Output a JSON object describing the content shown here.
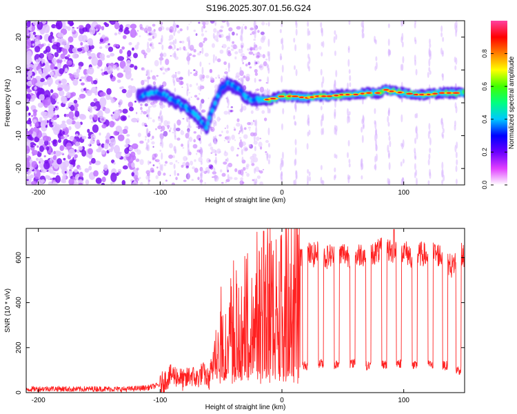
{
  "chart_data": [
    {
      "type": "heatmap",
      "title": "S196.2025.307.01.56.G24",
      "xlabel": "Height of straight line (km)",
      "ylabel": "Frequency (Hz)",
      "xlim": [
        -210,
        150
      ],
      "ylim": [
        -25,
        25
      ],
      "xticks": [
        -200,
        -100,
        0,
        100
      ],
      "yticks": [
        -20,
        -10,
        0,
        10,
        20
      ],
      "colorbar": {
        "label": "Normalized spectral amplitude",
        "range": [
          0,
          1
        ],
        "ticks": [
          "0.0",
          "0.2",
          "0.4",
          "0.6",
          "0.8"
        ],
        "colors": [
          "#ffffff",
          "#e040ff",
          "#6a00ff",
          "#0000ff",
          "#00c8ff",
          "#00ff80",
          "#40ff00",
          "#ffff00",
          "#ff8000",
          "#ff0000",
          "#ff40a0"
        ]
      },
      "ridge": {
        "x": [
          -117,
          -110,
          -100,
          -90,
          -80,
          -70,
          -65,
          -62,
          -58,
          -55,
          -50,
          -45,
          -40,
          -35,
          -30,
          -25,
          -20,
          -15,
          -10,
          -5,
          0,
          10,
          20,
          30,
          40,
          50,
          60,
          70,
          80,
          85,
          90,
          100,
          110,
          120,
          130,
          140,
          150
        ],
        "y": [
          2,
          3,
          3,
          1,
          -1,
          -4,
          -6,
          -8,
          -3,
          0,
          4,
          6,
          5,
          4,
          2,
          1,
          1,
          1,
          1,
          1.5,
          2,
          2,
          1.5,
          2,
          2,
          2.5,
          2.5,
          3,
          3,
          4,
          3.5,
          3,
          2.5,
          2.5,
          3,
          3,
          3
        ]
      }
    },
    {
      "type": "line",
      "xlabel": "Height of straight line (km)",
      "ylabel": "SNR (10 * v/v)",
      "xlim": [
        -210,
        150
      ],
      "ylim": [
        0,
        730
      ],
      "xticks": [
        -200,
        -100,
        0,
        100
      ],
      "yticks": [
        0,
        200,
        400,
        600
      ],
      "series": [
        {
          "name": "SNR",
          "color": "#ff2020",
          "x": [
            -210,
            -190,
            -170,
            -150,
            -130,
            -120,
            -110,
            -100,
            -95,
            -90,
            -85,
            -80,
            -75,
            -70,
            -65,
            -60,
            -55,
            -50,
            -45,
            -40,
            -35,
            -30,
            -25,
            -20,
            -15,
            -10,
            -5,
            0,
            5,
            10,
            15,
            20,
            25,
            30,
            35,
            40,
            45,
            50,
            55,
            60,
            65,
            70,
            75,
            80,
            85,
            90,
            95,
            100,
            105,
            110,
            115,
            120,
            125,
            130,
            135,
            140,
            145,
            150
          ],
          "y": [
            15,
            18,
            15,
            17,
            15,
            18,
            22,
            35,
            60,
            80,
            70,
            50,
            80,
            60,
            90,
            55,
            200,
            320,
            180,
            400,
            260,
            420,
            300,
            450,
            380,
            470,
            400,
            480,
            520,
            580,
            600,
            620,
            610,
            620,
            600,
            610,
            600,
            620,
            610,
            600,
            620,
            610,
            620,
            630,
            640,
            620,
            650,
            630,
            610,
            600,
            620,
            600,
            620,
            610,
            580,
            560,
            620,
            600
          ]
        }
      ],
      "dropouts": [
        {
          "x": 19,
          "y": 120
        },
        {
          "x": 32,
          "y": 130
        },
        {
          "x": 45,
          "y": 125
        },
        {
          "x": 58,
          "y": 130
        },
        {
          "x": 71,
          "y": 120
        },
        {
          "x": 84,
          "y": 125
        },
        {
          "x": 96,
          "y": 130
        },
        {
          "x": 109,
          "y": 120
        },
        {
          "x": 122,
          "y": 125
        },
        {
          "x": 134,
          "y": 120
        },
        {
          "x": 145,
          "y": 100
        }
      ]
    }
  ]
}
